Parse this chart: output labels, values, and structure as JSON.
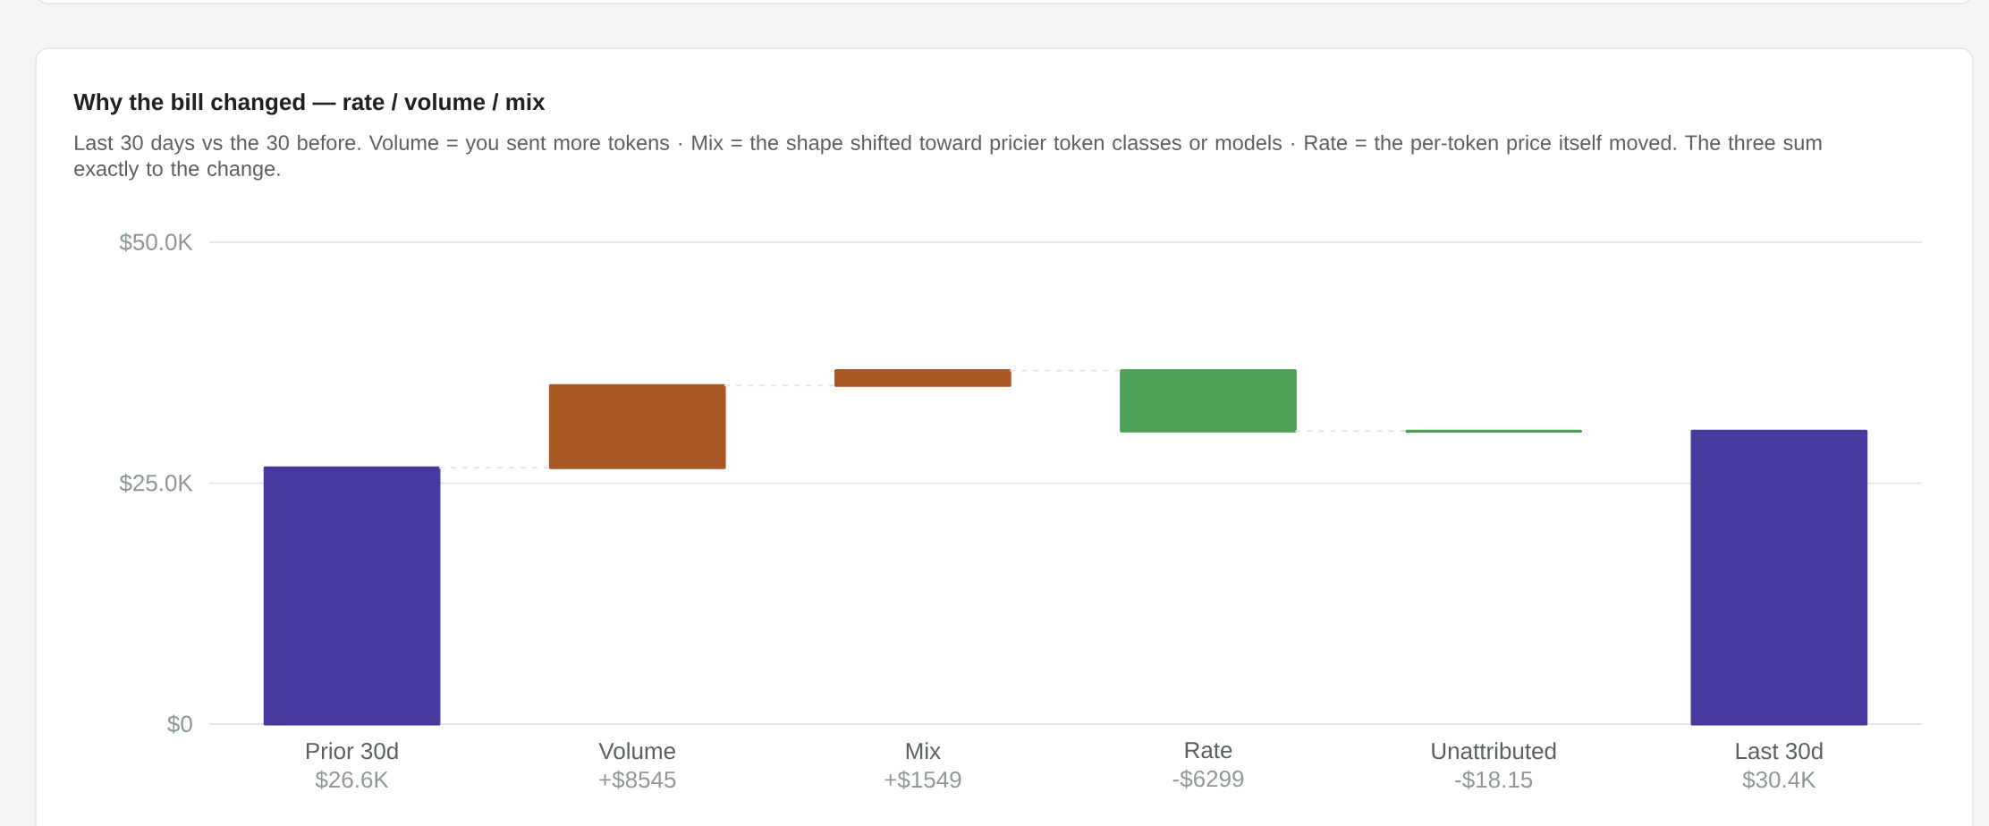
{
  "chart_data": {
    "type": "bar",
    "title": "Why the bill changed — rate / volume / mix",
    "subtitle": "Last 30 days vs the 30 before. Volume = you sent more tokens · Mix = the shape shifted toward pricier token classes or models · Rate = the per-token price itself moved. The three sum exactly to the change.",
    "categories": [
      "Prior 30d",
      "Volume",
      "Mix",
      "Rate",
      "Unattributed",
      "Last 30d"
    ],
    "values": [
      26600,
      8545,
      1549,
      -6299,
      -18.15,
      30400
    ],
    "base": [
      0,
      26600,
      35145,
      36694,
      30395,
      0
    ],
    "colors": [
      "#473a9f",
      "#a85622",
      "#a85622",
      "#4da154",
      "#4da154",
      "#473a9f"
    ],
    "value_labels": [
      "$26.6K",
      "+$8545",
      "+$1549",
      "-$6299",
      "-$18.15",
      "$30.4K"
    ],
    "ylim": [
      0,
      50000
    ],
    "yticks": [
      {
        "value": 0,
        "label": "$0"
      },
      {
        "value": 25000,
        "label": "$25.0K"
      },
      {
        "value": 50000,
        "label": "$50.0K"
      }
    ],
    "grid": "y"
  }
}
